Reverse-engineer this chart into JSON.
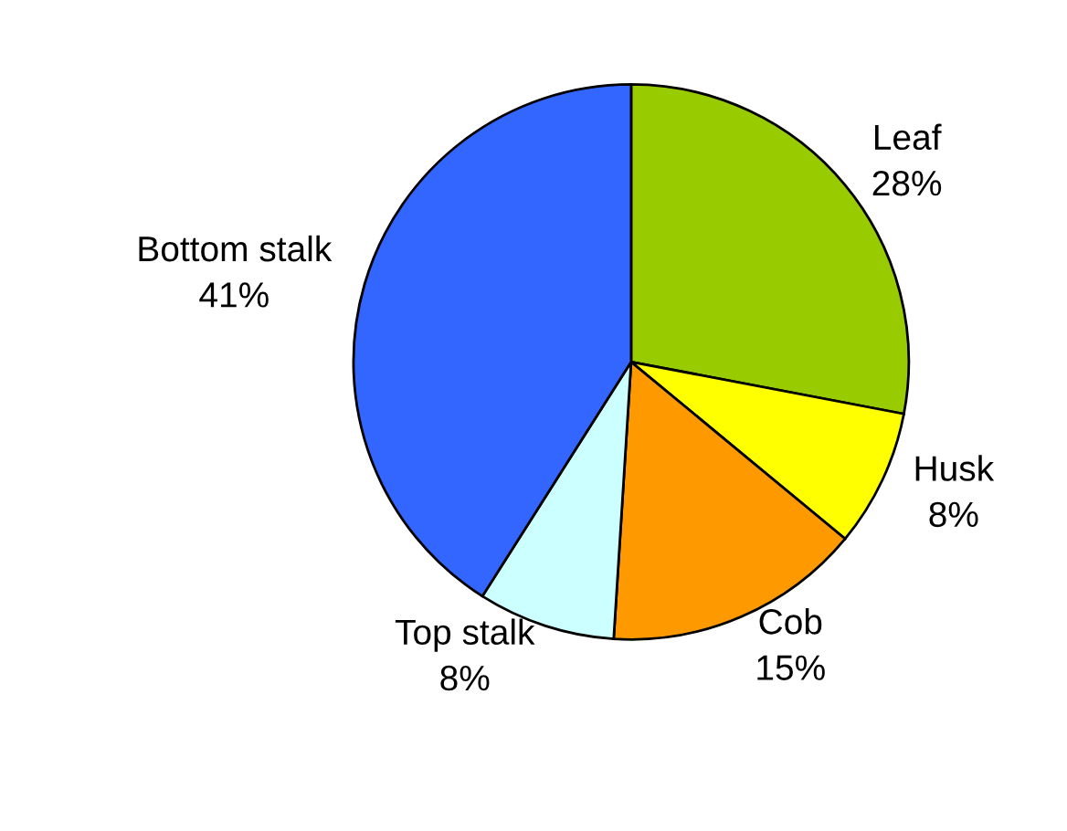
{
  "chart_data": {
    "type": "pie",
    "categories": [
      "Leaf",
      "Husk",
      "Cob",
      "Top stalk",
      "Bottom stalk"
    ],
    "values": [
      28,
      8,
      15,
      8,
      41
    ],
    "value_labels": [
      "28%",
      "8%",
      "15%",
      "8%",
      "41%"
    ],
    "colors": [
      "#99cc00",
      "#ffff00",
      "#ff9900",
      "#ccffff",
      "#3366ff"
    ],
    "legend": false
  }
}
